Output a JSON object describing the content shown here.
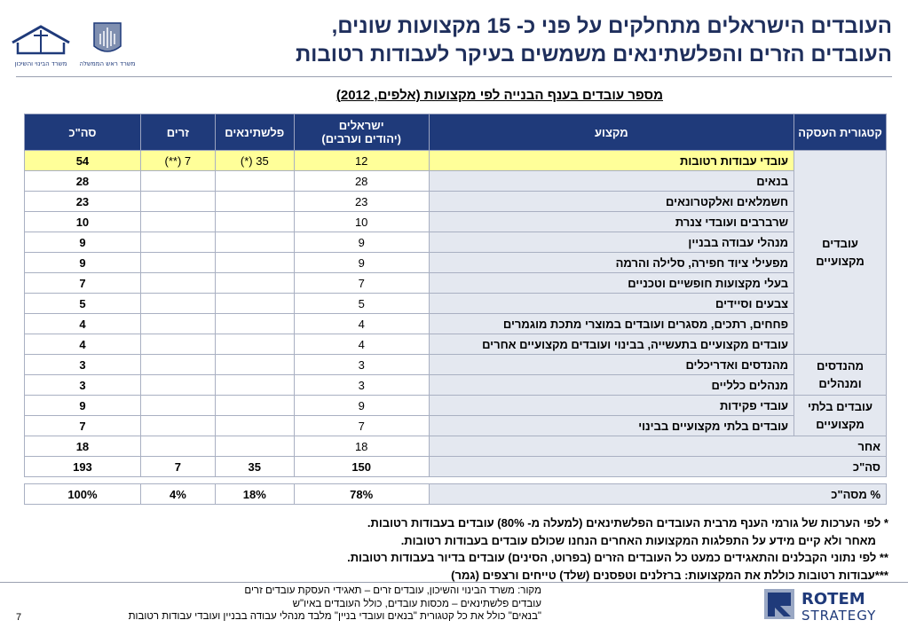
{
  "title": {
    "line1": "העובדים הישראלים מתחלקים על פני כ- 15 מקצועות שונים,",
    "line2": "העובדים הזרים והפלשתינאים משמשים בעיקר לעבודות רטובות"
  },
  "logos": {
    "housing": "משרד הבינוי והשיכון",
    "pmo": "משרד ראש הממשלה"
  },
  "subtitle": "מספר עובדים בענף הבנייה לפי מקצועות (אלפים, 2012)",
  "table": {
    "headers": {
      "category": "קטגורית העסקה",
      "occupation": "מקצוע",
      "israelis": "ישראלים",
      "israelis_sub": "(יהודים וערבים)",
      "palestinians": "פלשתינאים",
      "foreign": "זרים",
      "total": "סה\"כ"
    },
    "categories": {
      "professional": "עובדים מקצועיים",
      "engineers": "מהנדסים ומנהלים",
      "nonprofessional": "עובדים בלתי מקצועיים"
    },
    "rows": [
      {
        "occupation": "עובדי עבודות רטובות",
        "israelis": "12",
        "palestinians": "35 (*)",
        "foreign": "7 (**)",
        "total": "54"
      },
      {
        "occupation": "בנאים",
        "israelis": "28",
        "palestinians": "",
        "foreign": "",
        "total": "28"
      },
      {
        "occupation": "חשמלאים ואלקטרונאים",
        "israelis": "23",
        "palestinians": "",
        "foreign": "",
        "total": "23"
      },
      {
        "occupation": "שרברבים ועובדי צנרת",
        "israelis": "10",
        "palestinians": "",
        "foreign": "",
        "total": "10"
      },
      {
        "occupation": "מנהלי עבודה בבניין",
        "israelis": "9",
        "palestinians": "",
        "foreign": "",
        "total": "9"
      },
      {
        "occupation": "מפעילי ציוד חפירה, סלילה והרמה",
        "israelis": "9",
        "palestinians": "",
        "foreign": "",
        "total": "9"
      },
      {
        "occupation": "בעלי מקצועות חופשיים וטכניים",
        "israelis": "7",
        "palestinians": "",
        "foreign": "",
        "total": "7"
      },
      {
        "occupation": "צבעים וסיידים",
        "israelis": "5",
        "palestinians": "",
        "foreign": "",
        "total": "5"
      },
      {
        "occupation": "פחחים, רתכים, מסגרים ועובדים במוצרי מתכת מוגמרים",
        "israelis": "4",
        "palestinians": "",
        "foreign": "",
        "total": "4"
      },
      {
        "occupation": "עובדים מקצועיים בתעשייה, בבינוי ועובדים מקצועיים אחרים",
        "israelis": "4",
        "palestinians": "",
        "foreign": "",
        "total": "4"
      },
      {
        "occupation": "מהנדסים ואדריכלים",
        "israelis": "3",
        "palestinians": "",
        "foreign": "",
        "total": "3"
      },
      {
        "occupation": "מנהלים כלליים",
        "israelis": "3",
        "palestinians": "",
        "foreign": "",
        "total": "3"
      },
      {
        "occupation": "עובדי פקידות",
        "israelis": "9",
        "palestinians": "",
        "foreign": "",
        "total": "9"
      },
      {
        "occupation": "עובדים בלתי מקצועיים בבינוי",
        "israelis": "7",
        "palestinians": "",
        "foreign": "",
        "total": "7"
      }
    ],
    "other": {
      "label": "אחר",
      "israelis": "18",
      "total": "18"
    },
    "sum": {
      "label": "סה\"כ",
      "israelis": "150",
      "palestinians": "35",
      "foreign": "7",
      "total": "193"
    },
    "percent": {
      "label": "% מסה\"כ",
      "israelis": "78%",
      "palestinians": "18%",
      "foreign": "4%",
      "total": "100%"
    }
  },
  "notes": [
    "* לפי הערכות של גורמי הענף מרבית העובדים הפלשתינאים (למעלה מ- 80%) עובדים בעבודות רטובות.",
    "מאחר ולא קיים מידע על התפלגות המקצועות האחרים הנחנו שכולם עובדים בעבודות רטובות.",
    "** לפי נתוני הקבלנים והתאגידים כמעט כל העובדים הזרים (בפרוט, הסינים) עובדים בדיור בעבודות רטובות.",
    "***עבודות רטובות כוללת את המקצועות: ברזלנים וטפסנים (שלד) טייחים ורצפים (גמר)"
  ],
  "source": [
    "מקור: משרד הבינוי והשיכון, עובדים זרים – תאגידי העסקת עובדים זרים",
    "עובדים פלשתינאים – מכסות עובדים, כולל העובדים באיו\"ש",
    "\"בנאים\" כולל את כל קטגורית \"בנאים ועובדי בניין\" מלבד מנהלי עבודה בבניין ועובדי עבודות רטובות"
  ],
  "page_number": "7",
  "brand": {
    "name": "ROTEM",
    "sub": "STRATEGY",
    "color": "#1f3a7a"
  },
  "colors": {
    "header_bg": "#1f3a7a",
    "title": "#1f2f5c",
    "highlight": "#ffff99",
    "cell_bg": "#e4e8f0"
  }
}
